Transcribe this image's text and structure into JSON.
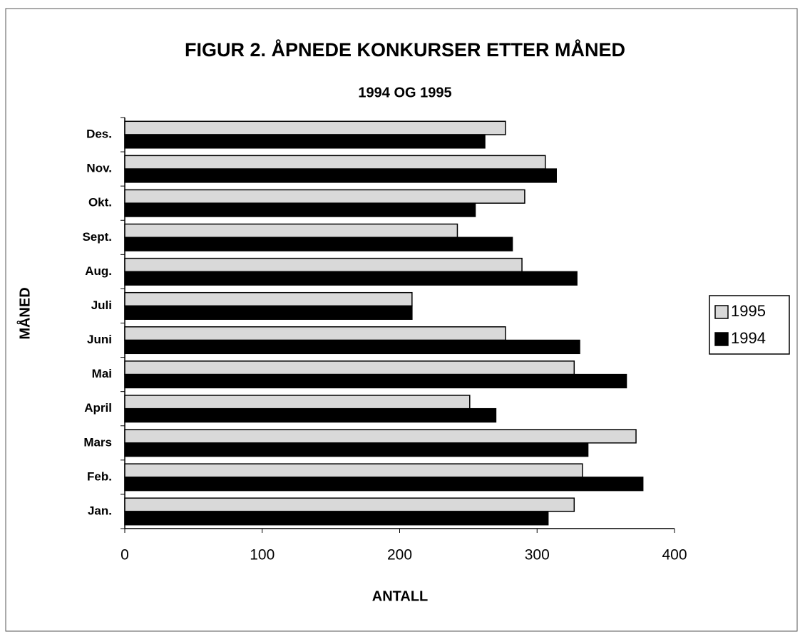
{
  "chart_data": {
    "type": "hbar",
    "title": "FIGUR 2. ÅPNEDE KONKURSER ETTER MÅNED",
    "subtitle": "1994 OG 1995",
    "xlabel": "ANTALL",
    "ylabel": "MÅNED",
    "categories": [
      "Jan.",
      "Feb.",
      "Mars",
      "April",
      "Mai",
      "Juni",
      "Juli",
      "Aug.",
      "Sept.",
      "Okt.",
      "Nov.",
      "Des."
    ],
    "series": [
      {
        "name": "1995",
        "color": "#d9d9d9",
        "values": [
          327,
          333,
          372,
          251,
          327,
          277,
          209,
          289,
          242,
          291,
          306,
          277
        ]
      },
      {
        "name": "1994",
        "color": "#000000",
        "values": [
          308,
          377,
          337,
          270,
          365,
          331,
          209,
          329,
          282,
          255,
          314,
          262
        ]
      }
    ],
    "xlim": [
      0,
      400
    ],
    "xticks": [
      0,
      100,
      200,
      300,
      400
    ],
    "legend": "right"
  }
}
